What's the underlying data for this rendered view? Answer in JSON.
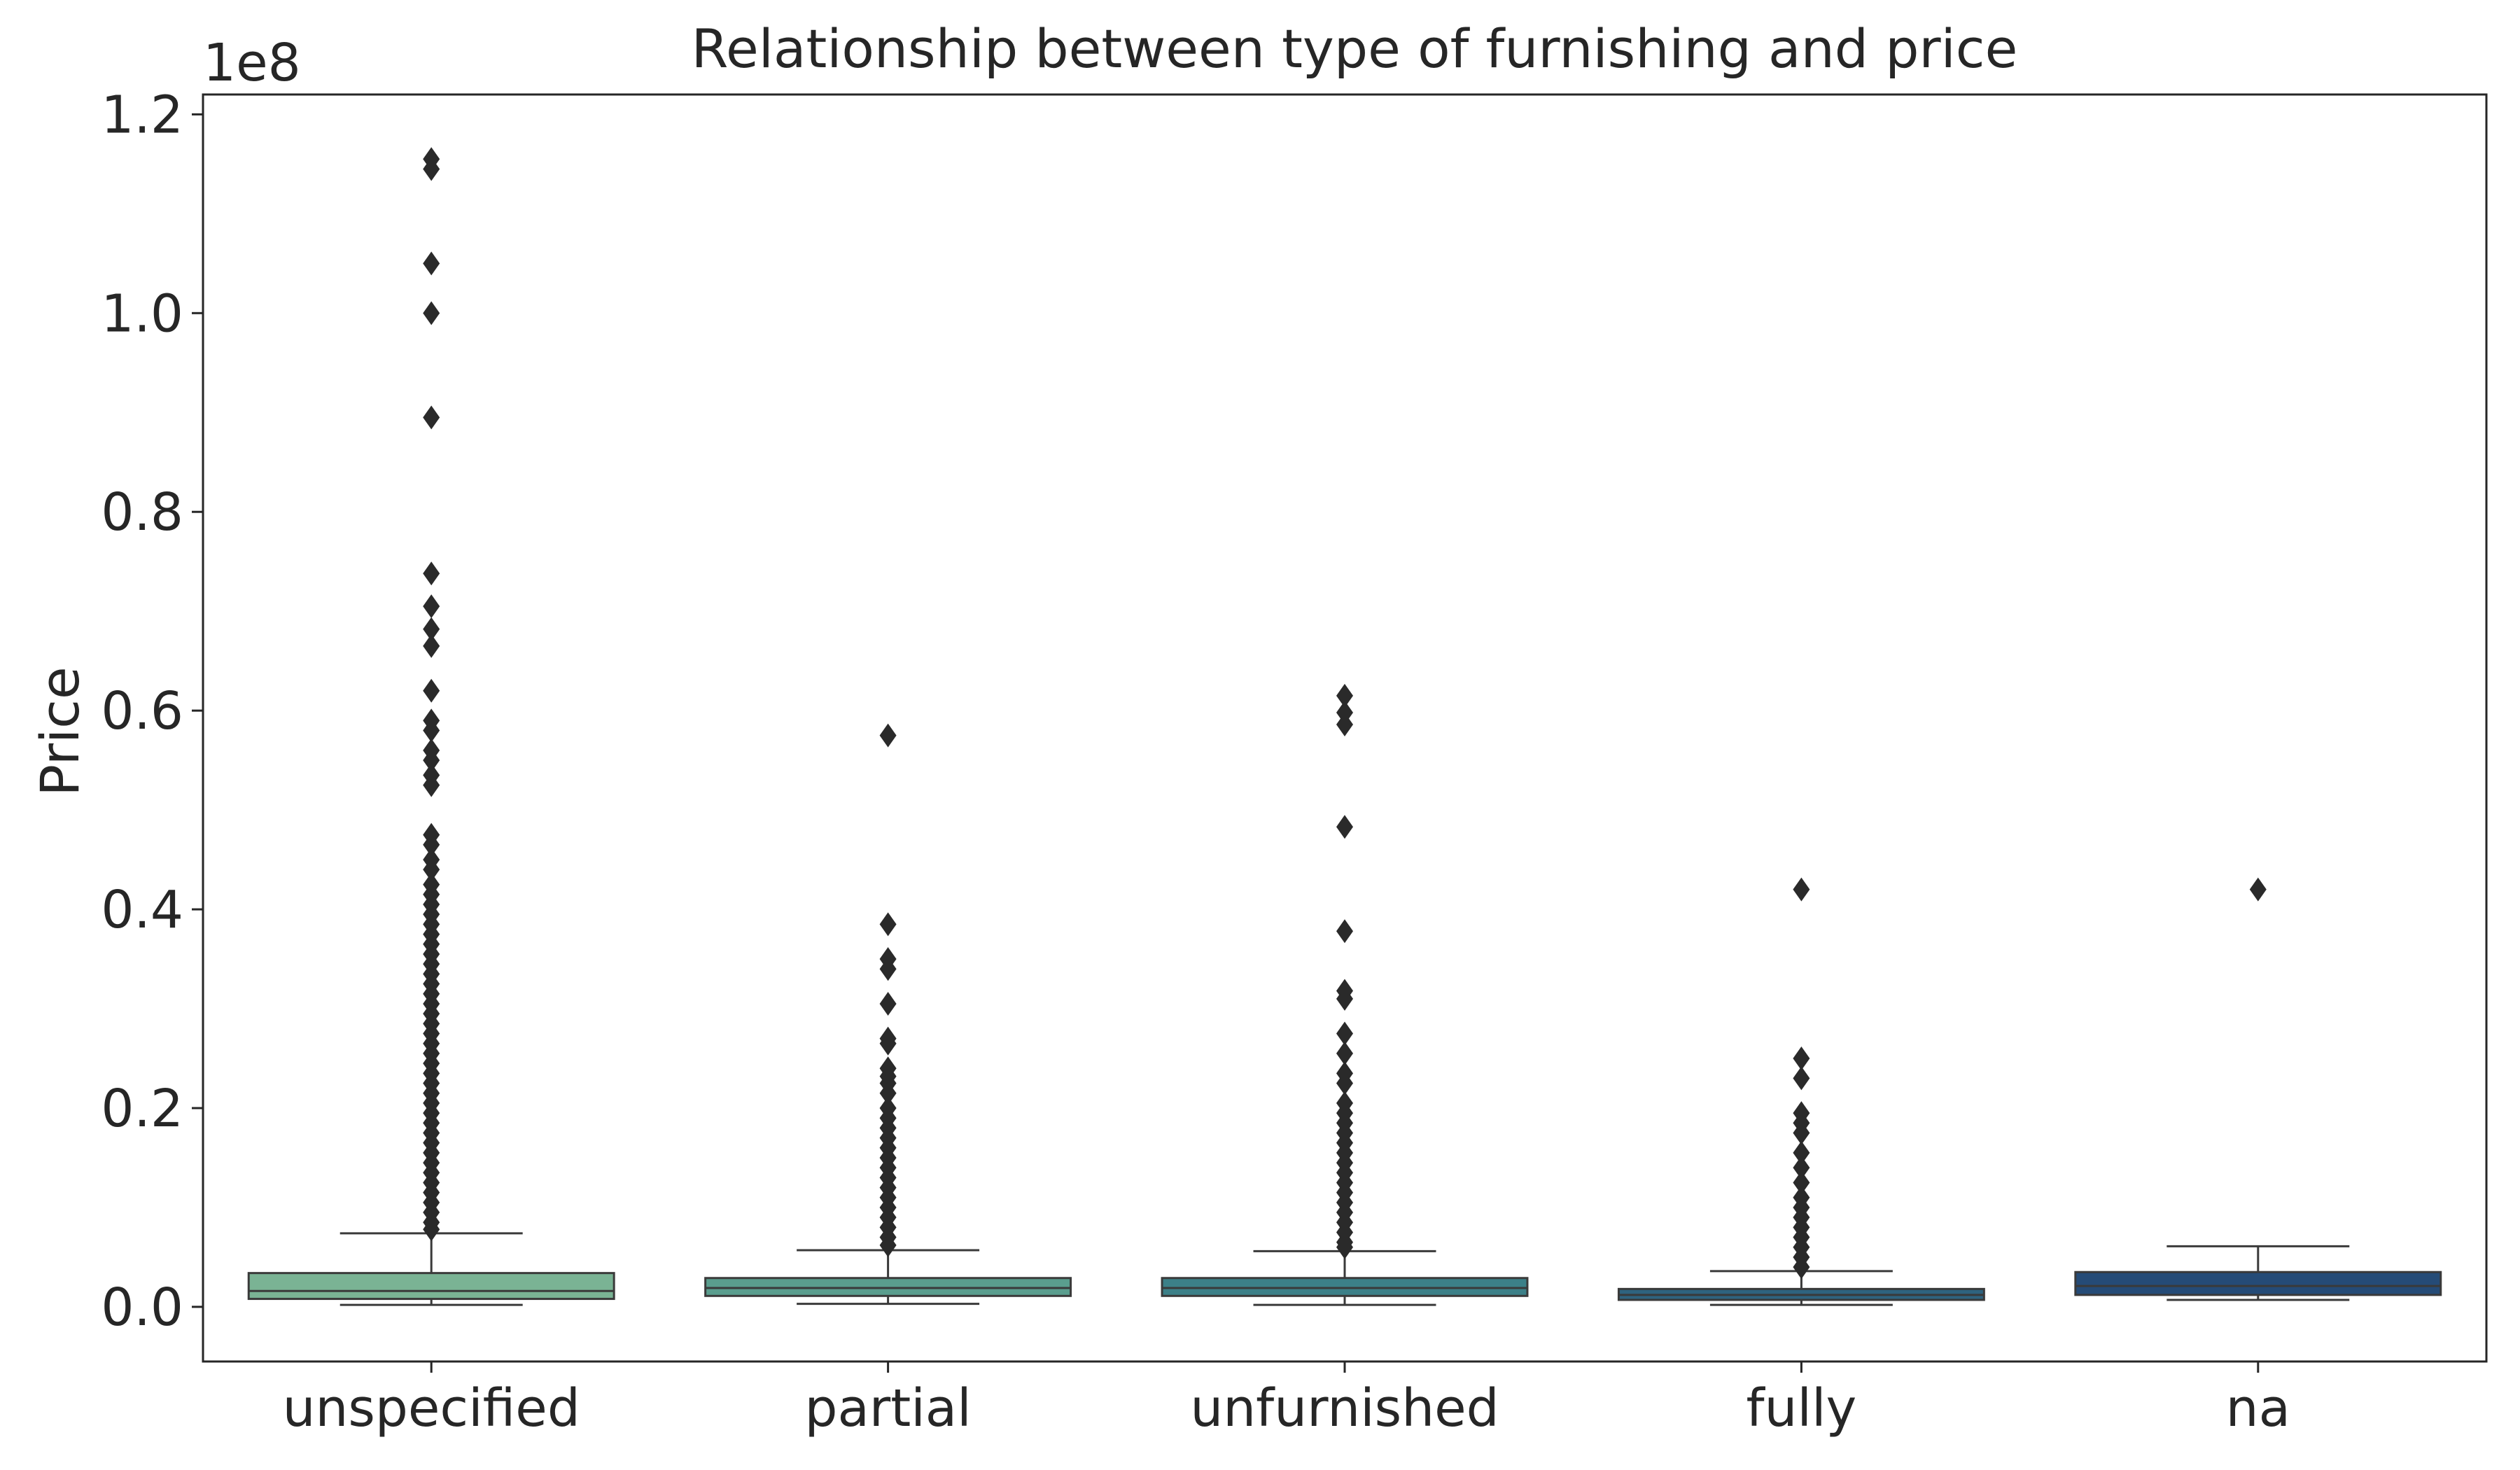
{
  "chart_data": {
    "type": "box",
    "title": "Relationship between type of furnishing and price",
    "xlabel": "",
    "ylabel": "Price",
    "y_offset_label": "1e8",
    "ylim": [
      -0.055,
      1.22
    ],
    "y_unit_multiplier": 100000000,
    "yticks": [
      0.0,
      0.2,
      0.4,
      0.6,
      0.8,
      1.0,
      1.2
    ],
    "ytick_labels": [
      "0.0",
      "0.2",
      "0.4",
      "0.6",
      "0.8",
      "1.0",
      "1.2"
    ],
    "grid": false,
    "legend": false,
    "categories": [
      "unspecified",
      "partial",
      "unfurnished",
      "fully",
      "na"
    ],
    "colors": [
      "#7ab394",
      "#5a9e8e",
      "#3c8088",
      "#2e637f",
      "#254b77"
    ],
    "series": [
      {
        "category": "unspecified",
        "whislo": 0.002,
        "q1": 0.008,
        "median": 0.016,
        "q3": 0.034,
        "whishi": 0.074,
        "outliers": [
          1.155,
          1.145,
          1.05,
          1.0,
          0.895,
          0.738,
          0.705,
          0.682,
          0.665,
          0.62,
          0.59,
          0.58,
          0.56,
          0.55,
          0.535,
          0.525,
          0.475,
          0.465,
          0.45,
          0.44,
          0.425,
          0.415,
          0.405,
          0.395,
          0.385,
          0.375,
          0.365,
          0.355,
          0.345,
          0.335,
          0.325,
          0.315,
          0.305,
          0.295,
          0.285,
          0.275,
          0.265,
          0.255,
          0.245,
          0.235,
          0.225,
          0.215,
          0.205,
          0.195,
          0.185,
          0.175,
          0.165,
          0.155,
          0.145,
          0.135,
          0.125,
          0.115,
          0.105,
          0.095,
          0.085,
          0.078
        ]
      },
      {
        "category": "partial",
        "whislo": 0.003,
        "q1": 0.011,
        "median": 0.019,
        "q3": 0.029,
        "whishi": 0.057,
        "outliers": [
          0.575,
          0.385,
          0.35,
          0.34,
          0.305,
          0.27,
          0.265,
          0.24,
          0.232,
          0.225,
          0.215,
          0.2,
          0.19,
          0.18,
          0.17,
          0.16,
          0.15,
          0.14,
          0.13,
          0.12,
          0.11,
          0.1,
          0.09,
          0.08,
          0.07,
          0.062
        ]
      },
      {
        "category": "unfurnished",
        "whislo": 0.002,
        "q1": 0.011,
        "median": 0.019,
        "q3": 0.029,
        "whishi": 0.056,
        "outliers": [
          0.615,
          0.598,
          0.586,
          0.483,
          0.378,
          0.318,
          0.31,
          0.275,
          0.255,
          0.235,
          0.225,
          0.205,
          0.195,
          0.185,
          0.175,
          0.165,
          0.155,
          0.145,
          0.135,
          0.125,
          0.115,
          0.105,
          0.095,
          0.085,
          0.075,
          0.065,
          0.06
        ]
      },
      {
        "category": "fully",
        "whislo": 0.002,
        "q1": 0.007,
        "median": 0.012,
        "q3": 0.018,
        "whishi": 0.036,
        "outliers": [
          0.42,
          0.25,
          0.23,
          0.195,
          0.185,
          0.175,
          0.155,
          0.14,
          0.125,
          0.11,
          0.1,
          0.09,
          0.08,
          0.07,
          0.06,
          0.05,
          0.04
        ]
      },
      {
        "category": "na",
        "whislo": 0.007,
        "q1": 0.012,
        "median": 0.021,
        "q3": 0.035,
        "whishi": 0.061,
        "outliers": [
          0.42
        ]
      }
    ]
  }
}
